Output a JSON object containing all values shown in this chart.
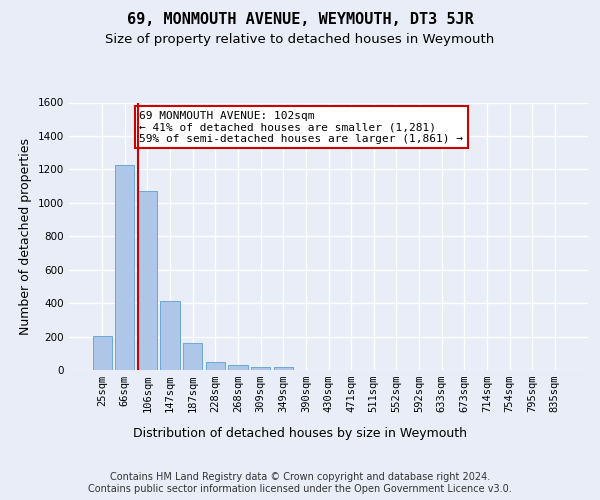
{
  "title": "69, MONMOUTH AVENUE, WEYMOUTH, DT3 5JR",
  "subtitle": "Size of property relative to detached houses in Weymouth",
  "xlabel": "Distribution of detached houses by size in Weymouth",
  "ylabel": "Number of detached properties",
  "categories": [
    "25sqm",
    "66sqm",
    "106sqm",
    "147sqm",
    "187sqm",
    "228sqm",
    "268sqm",
    "309sqm",
    "349sqm",
    "390sqm",
    "430sqm",
    "471sqm",
    "511sqm",
    "552sqm",
    "592sqm",
    "633sqm",
    "673sqm",
    "714sqm",
    "754sqm",
    "795sqm",
    "835sqm"
  ],
  "values": [
    205,
    1225,
    1070,
    410,
    160,
    45,
    28,
    18,
    15,
    0,
    0,
    0,
    0,
    0,
    0,
    0,
    0,
    0,
    0,
    0,
    0
  ],
  "bar_color": "#aec6e8",
  "bar_edge_color": "#5a9fd4",
  "vline_x_index": 2,
  "vline_color": "#cc0000",
  "annotation_text": "69 MONMOUTH AVENUE: 102sqm\n← 41% of detached houses are smaller (1,281)\n59% of semi-detached houses are larger (1,861) →",
  "annotation_box_color": "#ffffff",
  "annotation_box_edge_color": "#cc0000",
  "ylim": [
    0,
    1600
  ],
  "yticks": [
    0,
    200,
    400,
    600,
    800,
    1000,
    1200,
    1400,
    1600
  ],
  "footer_text": "Contains HM Land Registry data © Crown copyright and database right 2024.\nContains public sector information licensed under the Open Government Licence v3.0.",
  "bg_color": "#e8edf7",
  "plot_bg_color": "#e8edf7",
  "grid_color": "#ffffff",
  "title_fontsize": 11,
  "subtitle_fontsize": 9.5,
  "axis_label_fontsize": 9,
  "tick_fontsize": 7.5,
  "footer_fontsize": 7,
  "annot_fontsize": 8
}
